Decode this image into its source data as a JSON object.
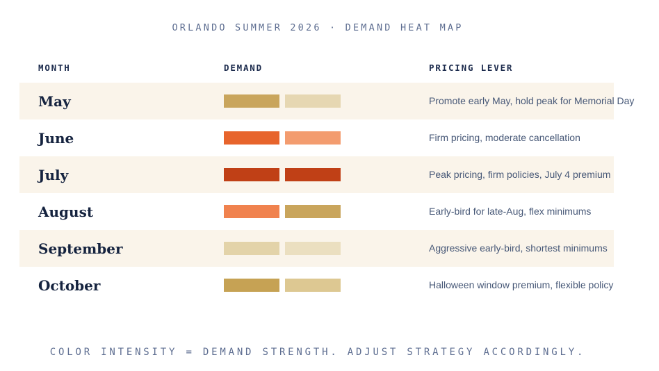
{
  "title": "ORLANDO SUMMER 2026 · DEMAND HEAT MAP",
  "footer": "COLOR INTENSITY = DEMAND STRENGTH. ADJUST STRATEGY ACCORDINGLY.",
  "colors": {
    "background": "#ffffff",
    "row_band": "#faf4ea",
    "heading_text": "#1b2a4c",
    "month_text": "#15233f",
    "lever_text": "#475877",
    "muted_blue": "#5e6e91"
  },
  "table": {
    "headers": [
      "MONTH",
      "DEMAND",
      "PRICING LEVER"
    ],
    "rows": [
      {
        "month": "May",
        "lever": "Promote early May, hold peak for Memorial Day"
      },
      {
        "month": "June",
        "lever": "Firm pricing, moderate cancellation"
      },
      {
        "month": "July",
        "lever": "Peak pricing, firm policies, July 4 premium"
      },
      {
        "month": "August",
        "lever": "Early-bird for late-Aug, flex minimums"
      },
      {
        "month": "September",
        "lever": "Aggressive early-bird, shortest minimums"
      },
      {
        "month": "October",
        "lever": "Halloween window premium, flexible policy"
      }
    ]
  },
  "chart_data": {
    "type": "heatmap",
    "title": "ORLANDO SUMMER 2026 · DEMAND HEAT MAP",
    "rows": [
      "May",
      "June",
      "July",
      "August",
      "September",
      "October"
    ],
    "columns": [
      "demand-cell-1",
      "demand-cell-2"
    ],
    "cell_colors": [
      [
        "#c9a55c",
        "#e6d7b2"
      ],
      [
        "#e7642c",
        "#f39c6f"
      ],
      [
        "#c04016",
        "#c04016"
      ],
      [
        "#f0824e",
        "#c9a55c"
      ],
      [
        "#e3d3a9",
        "#ebdfc0"
      ],
      [
        "#c6a254",
        "#ddc892"
      ]
    ],
    "intensity_estimate_0to4": [
      [
        2,
        1
      ],
      [
        3,
        2.5
      ],
      [
        4,
        4
      ],
      [
        2.5,
        2
      ],
      [
        1,
        0.5
      ],
      [
        2,
        1
      ]
    ],
    "value_encoding": "color intensity encodes demand strength (darker/redder = stronger demand); no numeric scale shown",
    "legend": "COLOR INTENSITY = DEMAND STRENGTH. ADJUST STRATEGY ACCORDINGLY."
  }
}
